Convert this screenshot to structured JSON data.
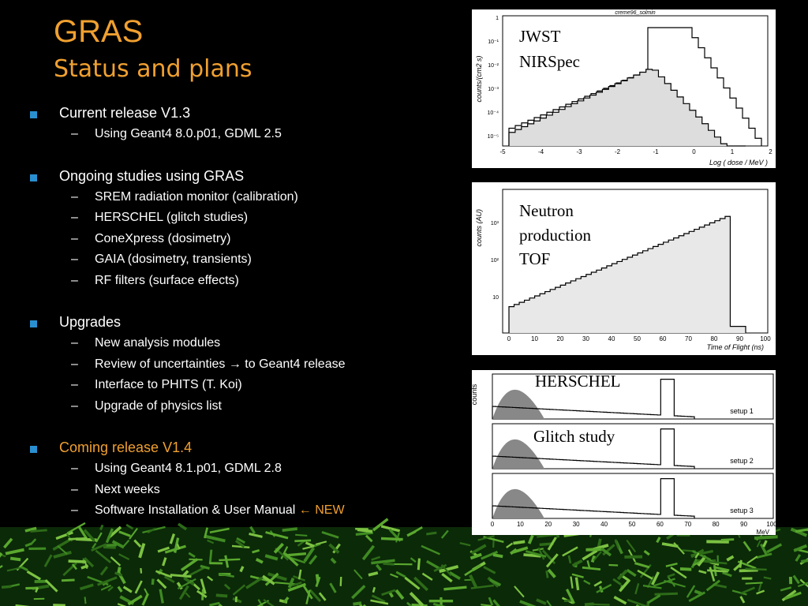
{
  "header": {
    "title": "GRAS",
    "subtitle": "Status and plans"
  },
  "sections": [
    {
      "heading": "Current release V1.3",
      "items": [
        "Using Geant4 8.0.p01, GDML 2.5"
      ]
    },
    {
      "heading": "Ongoing studies using GRAS",
      "items": [
        "SREM radiation monitor (calibration)",
        "HERSCHEL (glitch studies)",
        "ConeXpress (dosimetry)",
        "GAIA (dosimetry, transients)",
        "RF filters (surface effects)"
      ]
    },
    {
      "heading": "Upgrades",
      "items": [
        "New analysis modules",
        "Review of uncertainties → to Geant4 release",
        "Interface to PHITS (T. Koi)",
        "Upgrade of physics list"
      ]
    },
    {
      "heading": "Coming release V1.4",
      "items": [
        "Using Geant4 8.1.p01, GDML 2.8",
        "Next weeks",
        "Software Installation & User Manual"
      ],
      "highlight": "← NEW"
    }
  ],
  "figures": [
    {
      "caption": [
        "JWST",
        "NIRSpec"
      ],
      "title": "creme96_solmin",
      "ylabel": "counts/(cm2 s)",
      "xlabel": "Log ( dose / MeV )",
      "xticks": [
        "-5",
        "-4",
        "-3",
        "-2",
        "-1",
        "0",
        "1",
        "2"
      ],
      "yticks": [
        "1",
        "10⁻¹",
        "10⁻²",
        "10⁻³",
        "10⁻⁴",
        "10⁻⁵"
      ]
    },
    {
      "caption": [
        "Neutron",
        "production",
        "TOF"
      ],
      "ylabel": "counts (AU)",
      "xlabel": "Time of Flight (ns)",
      "xticks": [
        "0",
        "10",
        "20",
        "30",
        "40",
        "50",
        "60",
        "70",
        "80",
        "90",
        "100"
      ],
      "yticks": [
        "10³",
        "10²",
        "10"
      ]
    },
    {
      "caption": [
        "HERSCHEL",
        "Glitch  study"
      ],
      "ylabel": "counts",
      "xlabel": "MeV",
      "setups": [
        "setup 1",
        "setup 2",
        "setup 3"
      ],
      "xticks": [
        "0",
        "10",
        "20",
        "30",
        "40",
        "50",
        "60",
        "70",
        "80",
        "90",
        "100"
      ]
    }
  ]
}
